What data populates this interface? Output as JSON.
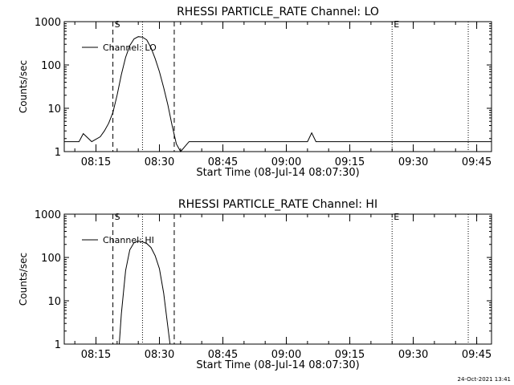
{
  "chart_data": [
    {
      "type": "line",
      "title": "RHESSI PARTICLE_RATE Channel: LO",
      "xlabel": "Start Time (08-Jul-14 08:07:30)",
      "ylabel": "Counts/sec",
      "yscale": "log",
      "ylim": [
        1,
        1000
      ],
      "ytick_labels": [
        "1",
        "10",
        "100",
        "1000"
      ],
      "ytick_values": [
        1,
        10,
        100,
        1000
      ],
      "xlim": [
        "08:07:30",
        "09:48:30"
      ],
      "xtick_labels": [
        "08:15",
        "08:30",
        "08:45",
        "09:00",
        "09:15",
        "09:30",
        "09:45"
      ],
      "legend": "Channel: LO",
      "legend_position": "top-left",
      "markers": [
        {
          "label": "S",
          "time": "08:19:00",
          "style": "dashed"
        },
        {
          "label": "",
          "time": "08:26:00",
          "style": "dotted"
        },
        {
          "label": "",
          "time": "08:33:30",
          "style": "dashed"
        },
        {
          "label": "E",
          "time": "09:25:00",
          "style": "dotted"
        },
        {
          "label": "",
          "time": "09:43:00",
          "style": "dotted"
        }
      ],
      "series": [
        {
          "name": "Channel: LO",
          "x": [
            "08:07:30",
            "08:11:00",
            "08:12:00",
            "08:14:00",
            "08:16:00",
            "08:17:00",
            "08:18:00",
            "08:19:00",
            "08:20:00",
            "08:21:00",
            "08:22:00",
            "08:23:00",
            "08:24:00",
            "08:25:00",
            "08:26:00",
            "08:27:00",
            "08:28:00",
            "08:29:00",
            "08:30:00",
            "08:31:00",
            "08:32:00",
            "08:33:00",
            "08:34:00",
            "08:35:00",
            "08:37:00",
            "08:40:00",
            "08:45:00",
            "08:55:00",
            "09:05:00",
            "09:06:00",
            "09:07:00",
            "09:15:00",
            "09:25:00",
            "09:35:00",
            "09:48:30"
          ],
          "y": [
            1.7,
            1.7,
            2.6,
            1.7,
            2.2,
            3.0,
            4.5,
            8.0,
            20,
            60,
            150,
            280,
            400,
            450,
            440,
            380,
            250,
            140,
            70,
            30,
            12,
            4,
            1.5,
            1.0,
            1.7,
            1.7,
            1.7,
            1.7,
            1.7,
            2.7,
            1.7,
            1.7,
            1.7,
            1.7,
            1.7
          ]
        }
      ]
    },
    {
      "type": "line",
      "title": "RHESSI PARTICLE_RATE Channel: HI",
      "xlabel": "Start Time (08-Jul-14 08:07:30)",
      "ylabel": "Counts/sec",
      "yscale": "log",
      "ylim": [
        1,
        1000
      ],
      "ytick_labels": [
        "1",
        "10",
        "100",
        "1000"
      ],
      "ytick_values": [
        1,
        10,
        100,
        1000
      ],
      "xlim": [
        "08:07:30",
        "09:48:30"
      ],
      "xtick_labels": [
        "08:15",
        "08:30",
        "08:45",
        "09:00",
        "09:15",
        "09:30",
        "09:45"
      ],
      "legend": "Channel: HI",
      "legend_position": "top-left",
      "markers": [
        {
          "label": "S",
          "time": "08:19:00",
          "style": "dashed"
        },
        {
          "label": "",
          "time": "08:26:00",
          "style": "dotted"
        },
        {
          "label": "",
          "time": "08:33:30",
          "style": "dashed"
        },
        {
          "label": "E",
          "time": "09:25:00",
          "style": "dotted"
        },
        {
          "label": "",
          "time": "09:43:00",
          "style": "dotted"
        }
      ],
      "series": [
        {
          "name": "Channel: HI",
          "x": [
            "08:20:30",
            "08:21:00",
            "08:22:00",
            "08:23:00",
            "08:24:00",
            "08:25:00",
            "08:26:00",
            "08:27:00",
            "08:28:00",
            "08:29:00",
            "08:30:00",
            "08:31:00",
            "08:32:00",
            "08:32:30"
          ],
          "y": [
            1.0,
            5,
            50,
            150,
            220,
            240,
            230,
            210,
            170,
            110,
            55,
            15,
            2.5,
            1.0
          ]
        }
      ]
    }
  ],
  "footer": {
    "timestamp": "24-Oct-2021 13:41"
  }
}
